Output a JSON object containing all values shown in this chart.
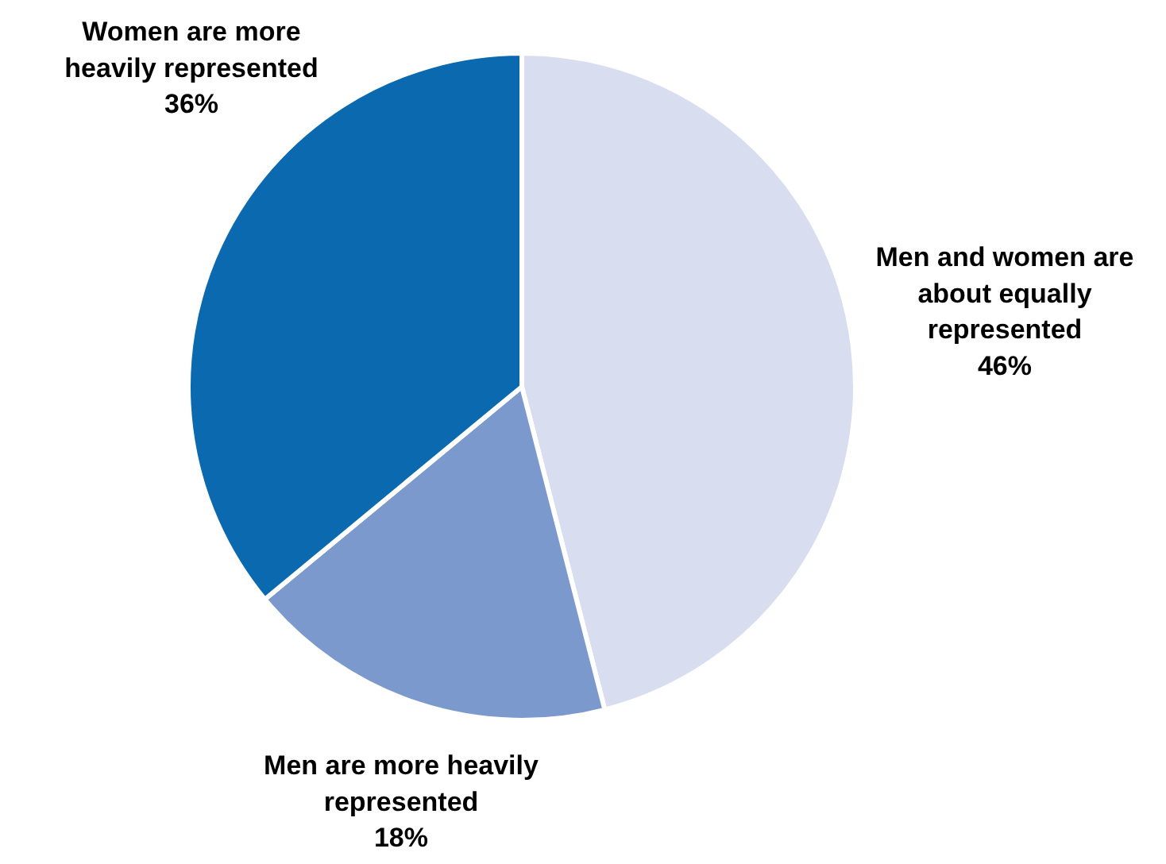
{
  "chart_data": {
    "type": "pie",
    "categories": [
      "Men and women are about equally represented",
      "Men are more heavily represented",
      "Women are more heavily represented"
    ],
    "values": [
      46,
      18,
      36
    ],
    "value_labels": [
      "46%",
      "18%",
      "36%"
    ],
    "colors": [
      "#d9ddf0",
      "#7b99cc",
      "#0b69b0"
    ],
    "legend": false
  }
}
